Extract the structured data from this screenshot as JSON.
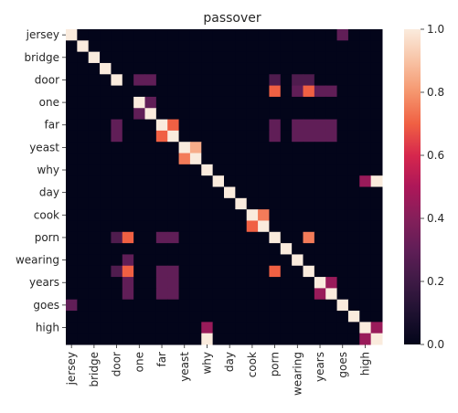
{
  "chart_data": {
    "type": "heatmap",
    "title": "passover",
    "labels": [
      "jersey",
      "bridge",
      "door",
      "one",
      "far",
      "yeast",
      "why",
      "day",
      "cook",
      "porn",
      "wearing",
      "years",
      "goes",
      "high"
    ],
    "x_ticks": [
      "jersey",
      "",
      "bridge",
      "",
      "door",
      "",
      "one",
      "",
      "far",
      "",
      "yeast",
      "",
      "why",
      "",
      "day",
      "",
      "cook",
      "",
      "porn",
      "",
      "wearing",
      "",
      "years",
      "",
      "goes",
      "",
      "high",
      ""
    ],
    "y_ticks": [
      "jersey",
      "",
      "bridge",
      "",
      "door",
      "",
      "one",
      "",
      "far",
      "",
      "yeast",
      "",
      "why",
      "",
      "day",
      "",
      "cook",
      "",
      "porn",
      "",
      "wearing",
      "",
      "years",
      "",
      "goes",
      "",
      "high",
      ""
    ],
    "colorbar": {
      "range": [
        0,
        1
      ],
      "ticks": [
        "0.0",
        "0.2",
        "0.4",
        "0.6",
        "0.8",
        "1.0"
      ]
    },
    "colormap": "rocket",
    "values": [
      [
        1,
        0,
        0,
        0,
        0,
        0,
        0,
        0,
        0,
        0,
        0,
        0,
        0,
        0,
        0,
        0,
        0,
        0,
        0,
        0,
        0,
        0,
        0,
        0,
        0.3,
        0,
        0,
        0
      ],
      [
        0,
        1,
        0,
        0,
        0,
        0,
        0,
        0,
        0,
        0,
        0,
        0,
        0,
        0,
        0,
        0,
        0,
        0,
        0,
        0,
        0,
        0,
        0,
        0,
        0,
        0,
        0,
        0
      ],
      [
        0,
        0,
        1,
        0,
        0,
        0,
        0,
        0,
        0,
        0,
        0,
        0,
        0,
        0,
        0,
        0,
        0,
        0,
        0,
        0,
        0,
        0,
        0,
        0,
        0,
        0,
        0,
        0
      ],
      [
        0,
        0,
        0,
        1,
        0,
        0,
        0,
        0,
        0,
        0,
        0,
        0,
        0,
        0,
        0,
        0,
        0,
        0,
        0,
        0,
        0,
        0,
        0,
        0,
        0,
        0,
        0,
        0
      ],
      [
        0,
        0,
        0,
        0,
        1,
        0,
        0.3,
        0.3,
        0,
        0,
        0,
        0,
        0,
        0,
        0,
        0,
        0,
        0,
        0.25,
        0,
        0.25,
        0.25,
        0,
        0,
        0,
        0,
        0,
        0
      ],
      [
        0,
        0,
        0,
        0,
        0,
        0,
        0,
        0,
        0,
        0,
        0,
        0,
        0,
        0,
        0,
        0,
        0,
        0,
        0.7,
        0,
        0.3,
        0.7,
        0.3,
        0.3,
        0,
        0,
        0,
        0
      ],
      [
        0,
        0,
        0,
        0,
        0,
        0,
        1,
        0.3,
        0,
        0,
        0,
        0,
        0,
        0,
        0,
        0,
        0,
        0,
        0,
        0,
        0,
        0,
        0,
        0,
        0,
        0,
        0,
        0
      ],
      [
        0,
        0,
        0,
        0,
        0,
        0,
        0.3,
        1,
        0,
        0,
        0,
        0,
        0,
        0,
        0,
        0,
        0,
        0,
        0,
        0,
        0,
        0,
        0,
        0,
        0,
        0,
        0,
        0
      ],
      [
        0,
        0,
        0,
        0,
        0.3,
        0,
        0,
        0,
        1,
        0.7,
        0,
        0,
        0,
        0,
        0,
        0,
        0,
        0,
        0.3,
        0,
        0.3,
        0.3,
        0.3,
        0.3,
        0,
        0,
        0,
        0
      ],
      [
        0,
        0,
        0,
        0,
        0.3,
        0,
        0,
        0,
        0.7,
        1,
        0,
        0,
        0,
        0,
        0,
        0,
        0,
        0,
        0.3,
        0,
        0.3,
        0.3,
        0.3,
        0.3,
        0,
        0,
        0,
        0
      ],
      [
        0,
        0,
        0,
        0,
        0,
        0,
        0,
        0,
        0,
        0,
        1,
        0.85,
        0,
        0,
        0,
        0,
        0,
        0,
        0,
        0,
        0,
        0,
        0,
        0,
        0,
        0,
        0,
        0
      ],
      [
        0,
        0,
        0,
        0,
        0,
        0,
        0,
        0,
        0,
        0,
        0.75,
        1,
        0,
        0,
        0,
        0,
        0,
        0,
        0,
        0,
        0,
        0,
        0,
        0,
        0,
        0,
        0,
        0
      ],
      [
        0,
        0,
        0,
        0,
        0,
        0,
        0,
        0,
        0,
        0,
        0,
        0,
        1,
        0,
        0,
        0,
        0,
        0,
        0,
        0,
        0,
        0,
        0,
        0,
        0,
        0,
        0,
        0
      ],
      [
        0,
        0,
        0,
        0,
        0,
        0,
        0,
        0,
        0,
        0,
        0,
        0,
        0,
        1,
        0,
        0,
        0,
        0,
        0,
        0,
        0,
        0,
        0,
        0,
        0,
        0,
        0.45,
        1
      ],
      [
        0,
        0,
        0,
        0,
        0,
        0,
        0,
        0,
        0,
        0,
        0,
        0,
        0,
        0,
        1,
        0,
        0,
        0,
        0,
        0,
        0,
        0,
        0,
        0,
        0,
        0,
        0,
        0
      ],
      [
        0,
        0,
        0,
        0,
        0,
        0,
        0,
        0,
        0,
        0,
        0,
        0,
        0,
        0,
        0,
        1,
        0,
        0,
        0,
        0,
        0,
        0,
        0,
        0,
        0,
        0,
        0,
        0
      ],
      [
        0,
        0,
        0,
        0,
        0,
        0,
        0,
        0,
        0,
        0,
        0,
        0,
        0,
        0,
        0,
        0,
        1,
        0.75,
        0,
        0,
        0,
        0,
        0,
        0,
        0,
        0,
        0,
        0
      ],
      [
        0,
        0,
        0,
        0,
        0,
        0,
        0,
        0,
        0,
        0,
        0,
        0,
        0,
        0,
        0,
        0,
        0.7,
        1,
        0,
        0,
        0,
        0,
        0,
        0,
        0,
        0,
        0,
        0
      ],
      [
        0,
        0,
        0,
        0,
        0.25,
        0.7,
        0,
        0,
        0.3,
        0.3,
        0,
        0,
        0,
        0,
        0,
        0,
        0,
        0,
        1,
        0,
        0,
        0.75,
        0,
        0,
        0,
        0,
        0,
        0
      ],
      [
        0,
        0,
        0,
        0,
        0,
        0,
        0,
        0,
        0,
        0,
        0,
        0,
        0,
        0,
        0,
        0,
        0,
        0,
        0,
        1,
        0,
        0,
        0,
        0,
        0,
        0,
        0,
        0
      ],
      [
        0,
        0,
        0,
        0,
        0,
        0.3,
        0,
        0,
        0,
        0,
        0,
        0,
        0,
        0,
        0,
        0,
        0,
        0,
        0,
        0,
        1,
        0,
        0,
        0,
        0,
        0,
        0,
        0
      ],
      [
        0,
        0,
        0,
        0,
        0.25,
        0.7,
        0,
        0,
        0.3,
        0.3,
        0,
        0,
        0,
        0,
        0,
        0,
        0,
        0,
        0.7,
        0,
        0,
        1,
        0,
        0,
        0,
        0,
        0,
        0
      ],
      [
        0,
        0,
        0,
        0,
        0,
        0.3,
        0,
        0,
        0.3,
        0.3,
        0,
        0,
        0,
        0,
        0,
        0,
        0,
        0,
        0,
        0,
        0,
        0,
        1,
        0.45,
        0,
        0,
        0,
        0
      ],
      [
        0,
        0,
        0,
        0,
        0,
        0.3,
        0,
        0,
        0.3,
        0.3,
        0,
        0,
        0,
        0,
        0,
        0,
        0,
        0,
        0,
        0,
        0,
        0,
        0.45,
        1,
        0,
        0,
        0,
        0
      ],
      [
        0.3,
        0,
        0,
        0,
        0,
        0,
        0,
        0,
        0,
        0,
        0,
        0,
        0,
        0,
        0,
        0,
        0,
        0,
        0,
        0,
        0,
        0,
        0,
        0,
        1,
        0,
        0,
        0
      ],
      [
        0,
        0,
        0,
        0,
        0,
        0,
        0,
        0,
        0,
        0,
        0,
        0,
        0,
        0,
        0,
        0,
        0,
        0,
        0,
        0,
        0,
        0,
        0,
        0,
        0,
        1,
        0,
        0
      ],
      [
        0,
        0,
        0,
        0,
        0,
        0,
        0,
        0,
        0,
        0,
        0,
        0,
        0.45,
        0,
        0,
        0,
        0,
        0,
        0,
        0,
        0,
        0,
        0,
        0,
        0,
        0,
        1,
        0.45
      ],
      [
        0,
        0,
        0,
        0,
        0,
        0,
        0,
        0,
        0,
        0,
        0,
        0,
        1,
        0,
        0,
        0,
        0,
        0,
        0,
        0,
        0,
        0,
        0,
        0,
        0,
        0,
        0.45,
        1
      ]
    ]
  }
}
